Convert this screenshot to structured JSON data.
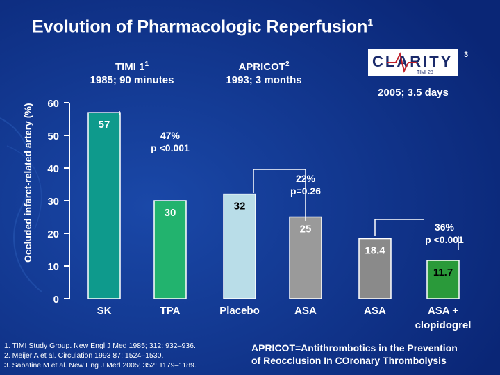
{
  "title": "Evolution of Pharmacologic Reperfusion",
  "title_sup": "1",
  "studies": [
    {
      "line1": "TIMI 1",
      "sup": "1",
      "line2": "1985; 90 minutes"
    },
    {
      "line1": "APRICOT",
      "sup": "2",
      "line2": "1993; 3 months"
    },
    {
      "logo_text": "CLARITY",
      "logo_sub": "TIMI 28",
      "sup": "3",
      "line2": "2005; 3.5 days"
    }
  ],
  "annotations": {
    "timi": {
      "line1": "47%",
      "line2": "p <0.001"
    },
    "apricot": {
      "line1": "22%",
      "line2": "p=0.26"
    },
    "clarity": {
      "line1": "36%",
      "line2": "p <0.001"
    }
  },
  "references": [
    "1. TIMI Study Group. New Engl J Med 1985; 312: 932–936.",
    "2. Meijer A et al. Circulation 1993 87: 1524–1530.",
    "3. Sabatine M et al. New Eng J Med 2005; 352: 1179–1189."
  ],
  "abbreviation": {
    "line1": "APRICOT=Antithrombotics in the Prevention",
    "line2": "of Reocclusion In COronary Thrombolysis"
  },
  "colors": {
    "background": "#0d2f86",
    "sk": "#0e9a8c",
    "tpa": "#22b36e",
    "placebo": "#b9dde8",
    "asa": "#9a9a9a",
    "asa2": "#8a8a8a",
    "clopidogrel": "#2a9a3a"
  },
  "chart_data": {
    "type": "bar",
    "ylabel": "Occluded infarct-related artery (%)",
    "ylim": [
      0,
      60
    ],
    "yticks": [
      0,
      10,
      20,
      30,
      40,
      50,
      60
    ],
    "categories": [
      "SK",
      "TPA",
      "Placebo",
      "ASA",
      "ASA",
      "ASA + clopidogrel"
    ],
    "values": [
      57,
      30,
      32,
      25,
      18.4,
      11.7
    ],
    "value_labels": [
      "57",
      "30",
      "32",
      "25",
      "18.4",
      "11.7"
    ],
    "grid": false
  }
}
